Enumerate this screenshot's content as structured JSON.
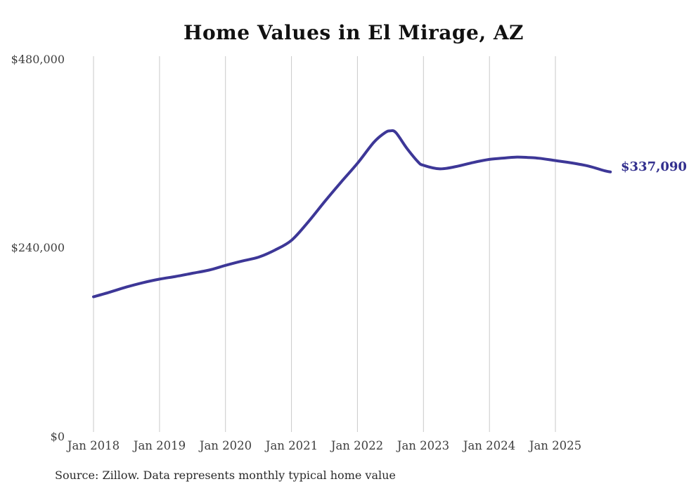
{
  "chart": {
    "title": "Home Values in El Mirage, AZ",
    "source_note": "Source: Zillow. Data represents monthly typical home value",
    "latest_value_label": "$337,090",
    "colors": {
      "line": "#3d3797",
      "latest_label_text": "#322f8e",
      "gridline": "#c9c9c9",
      "tick_text": "#3f3f3f",
      "title_text": "#111111",
      "source_text": "#2b2b2b",
      "background": "#ffffff"
    }
  },
  "chart_data": {
    "type": "line",
    "title": "Home Values in El Mirage, AZ",
    "xlabel": "",
    "ylabel": "",
    "ylim": [
      0,
      480000
    ],
    "grid": "vertical-only",
    "legend": "none",
    "y_ticks": [
      {
        "value": 0,
        "label": "$0"
      },
      {
        "value": 240000,
        "label": "$240,000"
      },
      {
        "value": 480000,
        "label": "$480,000"
      }
    ],
    "x_ticks": [
      "Jan 2018",
      "Jan 2019",
      "Jan 2020",
      "Jan 2021",
      "Jan 2022",
      "Jan 2023",
      "Jan 2024",
      "Jan 2025"
    ],
    "annotations": [
      {
        "text": "$337,090",
        "position": "line-end"
      }
    ],
    "series": [
      {
        "name": "Monthly typical home value",
        "color": "#3d3797",
        "points": [
          [
            "2018-01",
            178000
          ],
          [
            "2018-04",
            184000
          ],
          [
            "2018-07",
            190500
          ],
          [
            "2018-10",
            196000
          ],
          [
            "2019-01",
            200500
          ],
          [
            "2019-04",
            204000
          ],
          [
            "2019-07",
            208000
          ],
          [
            "2019-10",
            212000
          ],
          [
            "2020-01",
            218000
          ],
          [
            "2020-04",
            223500
          ],
          [
            "2020-07",
            228500
          ],
          [
            "2020-10",
            237500
          ],
          [
            "2021-01",
            250000
          ],
          [
            "2021-04",
            273000
          ],
          [
            "2021-07",
            299000
          ],
          [
            "2021-10",
            324000
          ],
          [
            "2022-01",
            348000
          ],
          [
            "2022-04",
            375000
          ],
          [
            "2022-06",
            387000
          ],
          [
            "2022-07",
            389500
          ],
          [
            "2022-08",
            387000
          ],
          [
            "2022-10",
            367000
          ],
          [
            "2022-12",
            350000
          ],
          [
            "2023-01",
            345500
          ],
          [
            "2023-04",
            341000
          ],
          [
            "2023-07",
            344000
          ],
          [
            "2023-10",
            349000
          ],
          [
            "2024-01",
            353000
          ],
          [
            "2024-04",
            355000
          ],
          [
            "2024-06",
            356000
          ],
          [
            "2024-08",
            355500
          ],
          [
            "2024-10",
            354500
          ],
          [
            "2025-01",
            351500
          ],
          [
            "2025-04",
            348500
          ],
          [
            "2025-07",
            344500
          ],
          [
            "2025-10",
            338500
          ],
          [
            "2025-11",
            337090
          ]
        ]
      }
    ]
  }
}
